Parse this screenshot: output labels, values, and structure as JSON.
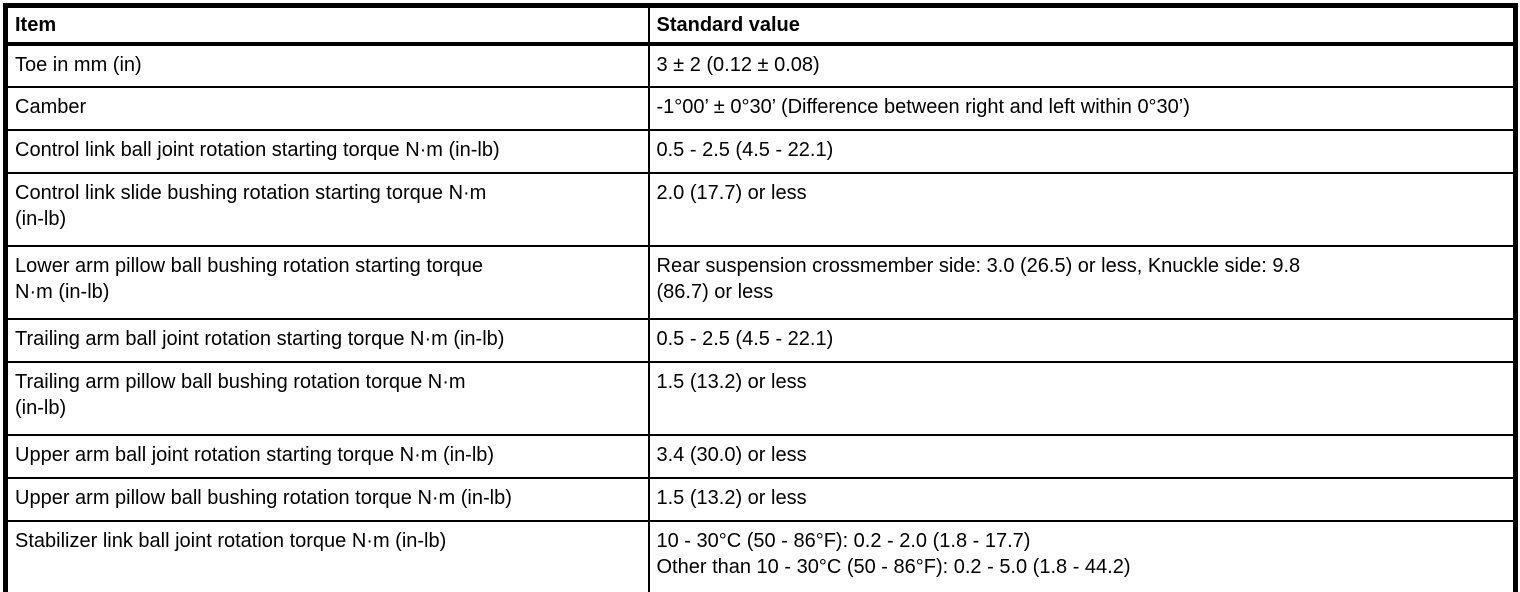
{
  "page": {
    "background_color": "#ffffff",
    "border_color": "#000000"
  },
  "table": {
    "columns": [
      {
        "label": "Item"
      },
      {
        "label": "Standard value"
      }
    ],
    "rows": [
      {
        "item": "Toe in mm (in)",
        "value": "3 ± 2 (0.12 ± 0.08)"
      },
      {
        "item": "Camber",
        "value": "-1°00’ ± 0°30’ (Difference between right and left within 0°30’)"
      },
      {
        "item": "Control link ball joint rotation starting torque N·m (in-lb)",
        "value": "0.5 - 2.5 (4.5 - 22.1)"
      },
      {
        "item": "Control link slide bushing rotation starting torque N·m\n(in-lb)",
        "value": "2.0 (17.7) or less"
      },
      {
        "item": "Lower arm pillow ball bushing rotation starting torque\nN·m (in-lb)",
        "value": "Rear suspension crossmember side: 3.0 (26.5) or less, Knuckle side: 9.8\n(86.7) or less"
      },
      {
        "item": "Trailing arm ball joint rotation starting torque N·m (in-lb)",
        "value": "0.5 - 2.5 (4.5 - 22.1)"
      },
      {
        "item": "Trailing arm pillow ball bushing rotation torque N·m\n(in-lb)",
        "value": "1.5 (13.2) or less"
      },
      {
        "item": "Upper arm ball joint rotation starting torque N·m (in-lb)",
        "value": "3.4 (30.0) or less"
      },
      {
        "item": "Upper arm pillow ball bushing rotation torque N·m (in-lb)",
        "value": "1.5 (13.2) or less"
      },
      {
        "item": "Stabilizer link ball joint rotation torque N·m (in-lb)",
        "value": "10 - 30°C (50 - 86°F): 0.2 - 2.0 (1.8 - 17.7)\nOther than 10 - 30°C (50 - 86°F): 0.2 - 5.0 (1.8 - 44.2)"
      }
    ]
  }
}
